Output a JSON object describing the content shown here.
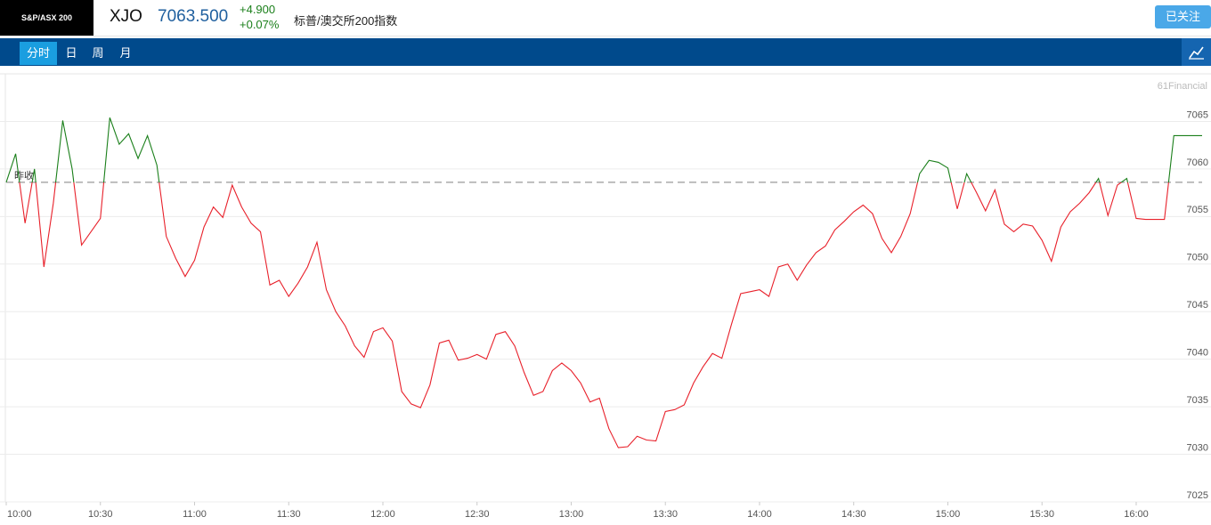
{
  "header": {
    "logo": "S&P/ASX 200",
    "symbol": "XJO",
    "price": "7063.500",
    "change": "+4.900",
    "change_pct": "+0.07%",
    "name": "标普/澳交所200指数",
    "button": "已关注"
  },
  "tabs": [
    "分时",
    "日",
    "周",
    "月"
  ],
  "chart_data": {
    "type": "line",
    "watermark": "61Financial",
    "categories": [
      "10:00",
      null,
      null,
      null,
      null,
      null,
      null,
      null,
      null,
      null,
      "10:30",
      null,
      null,
      null,
      null,
      null,
      null,
      null,
      null,
      null,
      "11:00",
      null,
      null,
      null,
      null,
      null,
      null,
      null,
      null,
      null,
      "11:30",
      null,
      null,
      null,
      null,
      null,
      null,
      null,
      null,
      null,
      "12:00",
      null,
      null,
      null,
      null,
      null,
      null,
      null,
      null,
      null,
      "12:30",
      null,
      null,
      null,
      null,
      null,
      null,
      null,
      null,
      null,
      "13:00",
      null,
      null,
      null,
      null,
      null,
      null,
      null,
      null,
      null,
      "13:30",
      null,
      null,
      null,
      null,
      null,
      null,
      null,
      null,
      null,
      "14:00",
      null,
      null,
      null,
      null,
      null,
      null,
      null,
      null,
      null,
      "14:30",
      null,
      null,
      null,
      null,
      null,
      null,
      null,
      null,
      null,
      "15:00",
      null,
      null,
      null,
      null,
      null,
      null,
      null,
      null,
      null,
      "15:30",
      null,
      null,
      null,
      null,
      null,
      null,
      null,
      null,
      null,
      "16:00",
      null,
      null,
      null,
      null,
      null,
      null,
      null
    ],
    "values": [
      7058.6,
      7061.6,
      7054.3,
      7060.0,
      7049.7,
      7056.4,
      7065.1,
      7060.0,
      7052.0,
      7053.4,
      7054.8,
      7065.4,
      7062.6,
      7063.7,
      7061.1,
      7063.5,
      7060.4,
      7052.9,
      7050.6,
      7048.7,
      7050.4,
      7053.9,
      7056.0,
      7054.9,
      7058.3,
      7056.0,
      7054.3,
      7053.4,
      7047.8,
      7048.3,
      7046.6,
      7048.0,
      7049.7,
      7052.3,
      7047.3,
      7045.0,
      7043.5,
      7041.4,
      7040.2,
      7042.9,
      7043.3,
      7041.9,
      7036.6,
      7035.3,
      7034.9,
      7037.3,
      7041.7,
      7042.0,
      7039.9,
      7040.1,
      7040.5,
      7040.0,
      7042.6,
      7042.9,
      7041.4,
      7038.6,
      7036.2,
      7036.6,
      7038.8,
      7039.6,
      7038.8,
      7037.5,
      7035.5,
      7035.9,
      7032.7,
      7030.7,
      7030.8,
      7031.9,
      7031.5,
      7031.4,
      7034.5,
      7034.7,
      7035.2,
      7037.5,
      7039.2,
      7040.6,
      7040.1,
      7043.6,
      7046.9,
      7047.1,
      7047.3,
      7046.6,
      7049.7,
      7050.0,
      7048.3,
      7049.9,
      7051.2,
      7051.9,
      7053.6,
      7054.5,
      7055.5,
      7056.2,
      7055.3,
      7052.7,
      7051.2,
      7052.9,
      7055.3,
      7059.5,
      7060.9,
      7060.7,
      7060.1,
      7055.8,
      7059.5,
      7057.6,
      7055.6,
      7057.8,
      7054.2,
      7053.4,
      7054.2,
      7054.0,
      7052.5,
      7050.3,
      7053.9,
      7055.5,
      7056.4,
      7057.5,
      7059.0,
      7055.1,
      7058.3,
      7059.0,
      7054.8,
      7054.7,
      7054.7,
      7054.7,
      7063.5,
      7063.5,
      7063.5,
      7063.5
    ],
    "up_color": "#1a7f1a",
    "down_color": "#e8202a",
    "reference_line": {
      "label": "昨收",
      "value": 7058.6
    },
    "ylim": [
      7025,
      7070
    ],
    "yticks": [
      7025,
      7030,
      7035,
      7040,
      7045,
      7050,
      7055,
      7060,
      7065
    ],
    "grid": true
  }
}
